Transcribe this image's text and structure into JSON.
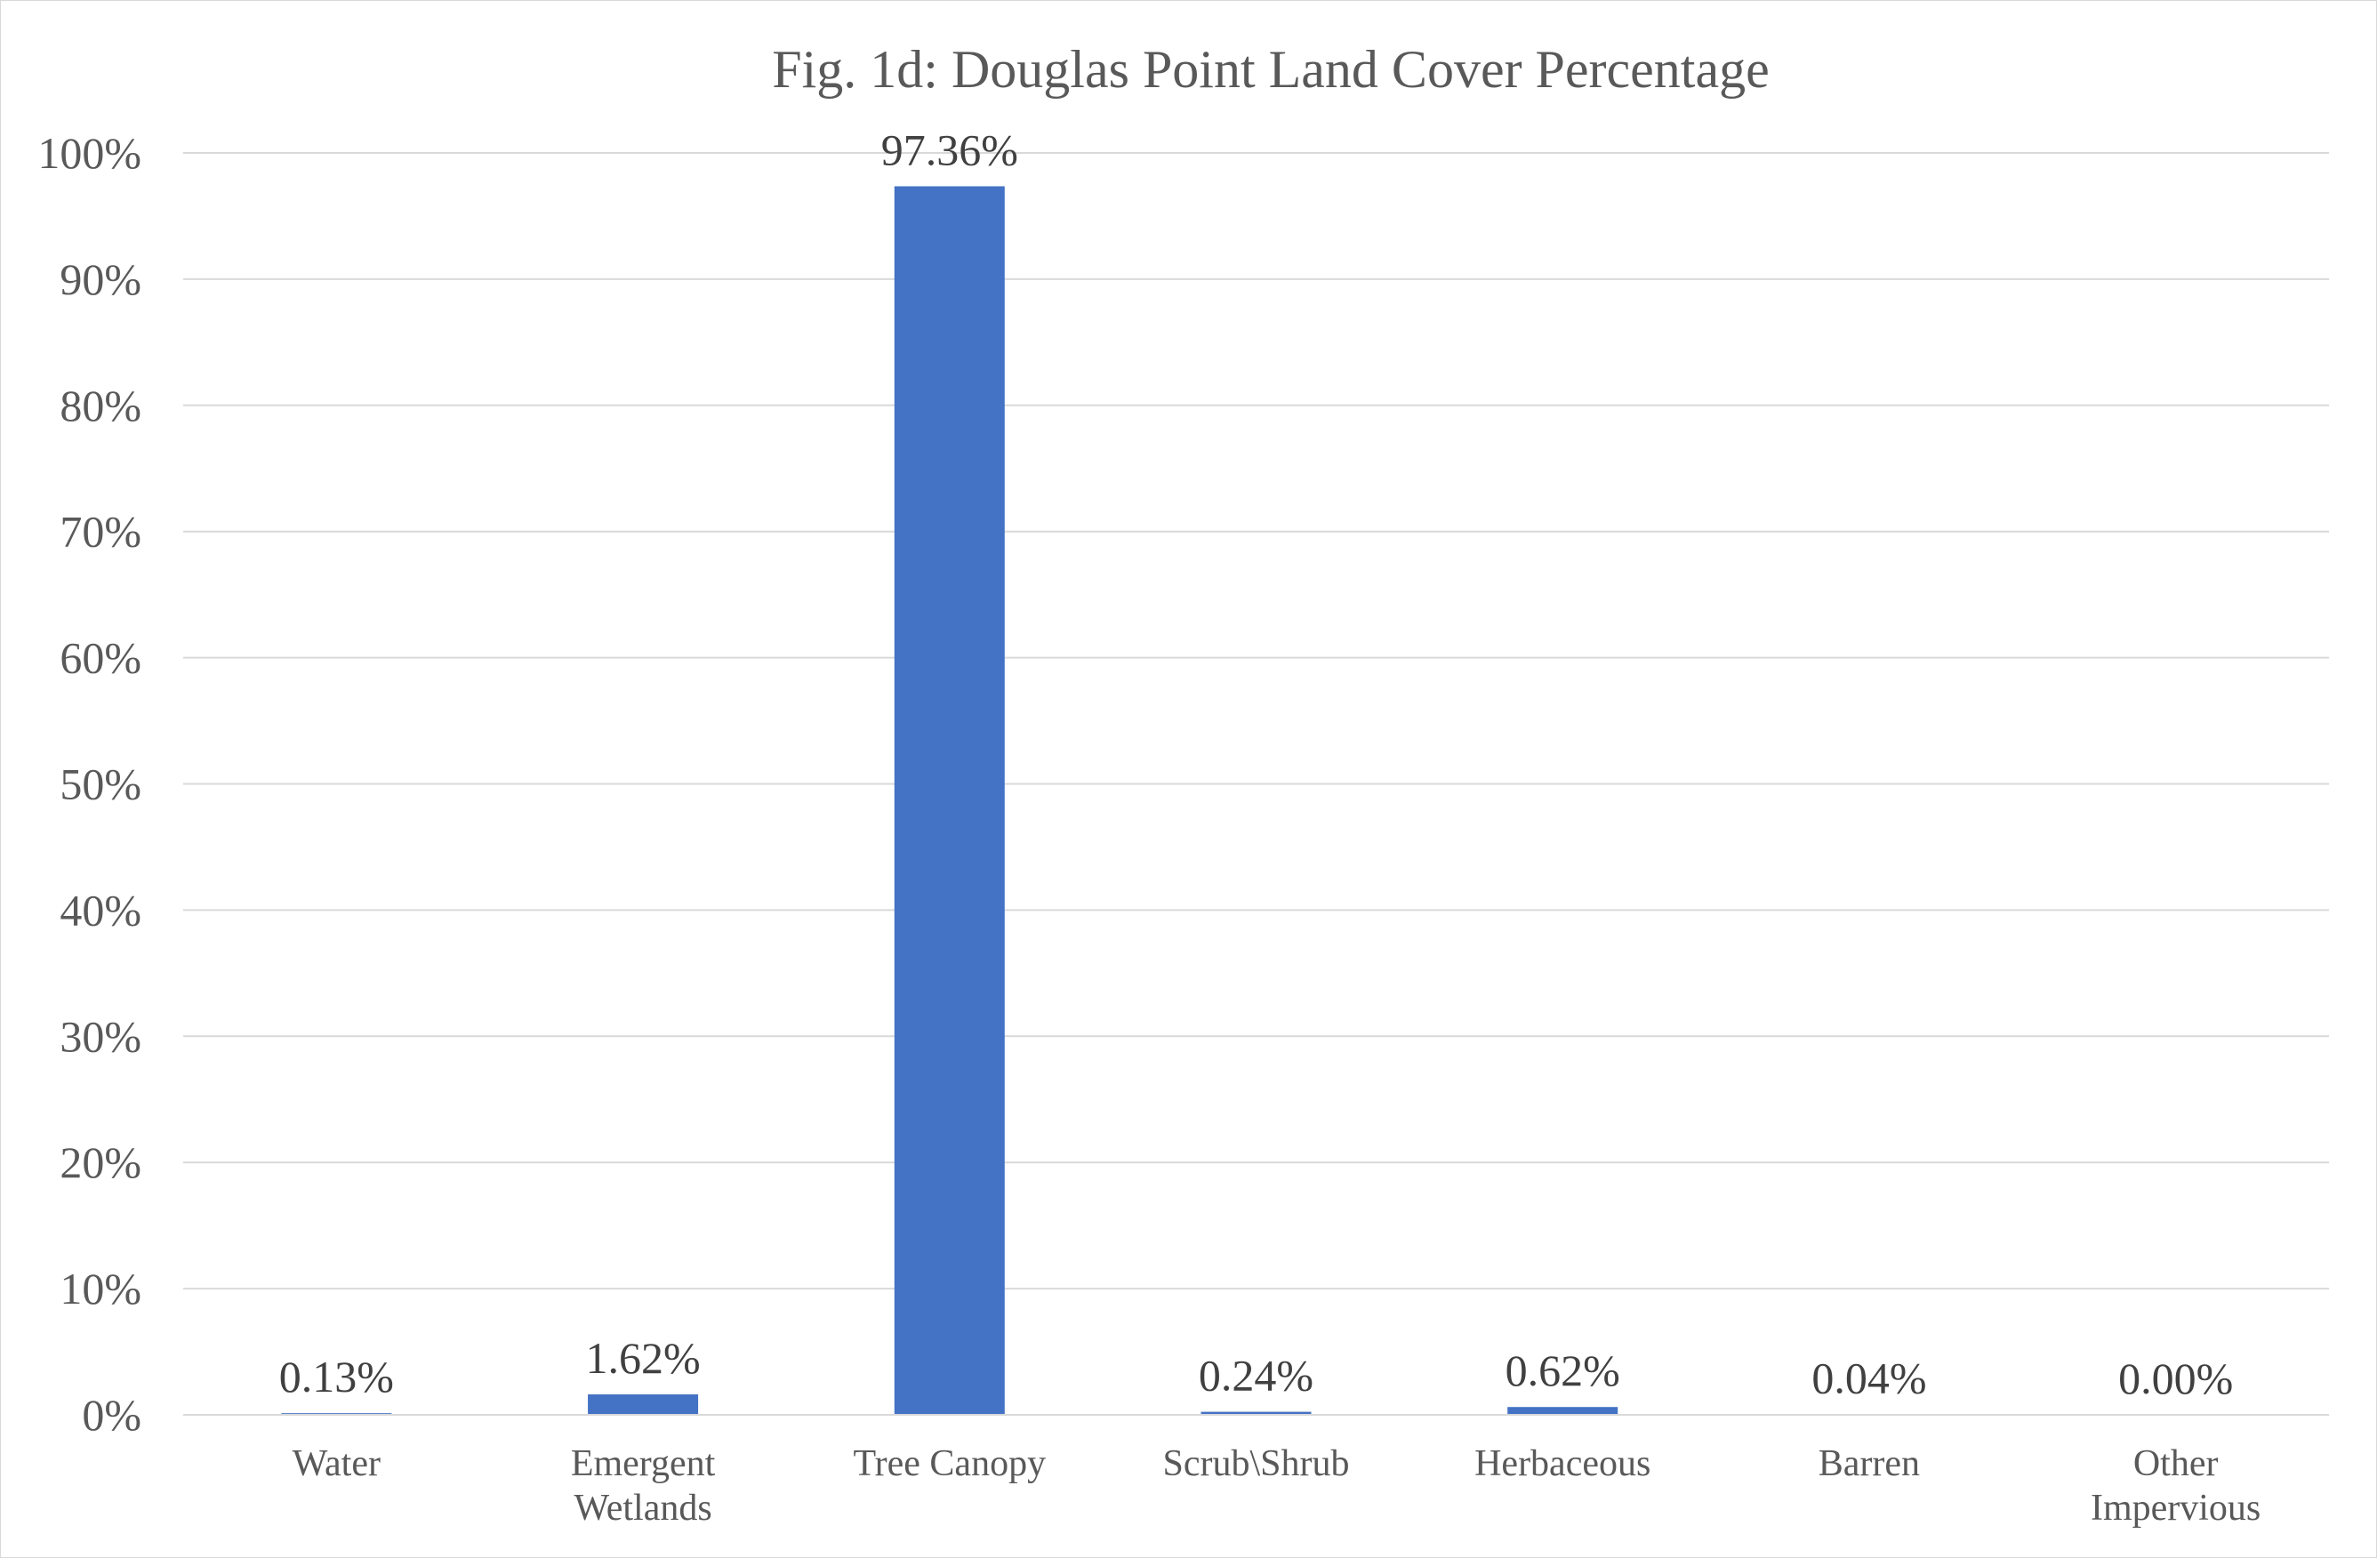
{
  "chart_data": {
    "type": "bar",
    "title": "Fig. 1d: Douglas Point Land Cover Percentage",
    "xlabel": "",
    "ylabel": "",
    "categories": [
      "Water",
      "Emergent Wetlands",
      "Tree Canopy",
      "Scrub\\Shrub",
      "Herbaceous",
      "Barren",
      "Other Impervious"
    ],
    "values": [
      0.13,
      1.62,
      97.36,
      0.24,
      0.62,
      0.04,
      0.0
    ],
    "data_labels": [
      "0.13%",
      "1.62%",
      "97.36%",
      "0.24%",
      "0.62%",
      "0.04%",
      "0.00%"
    ],
    "ylim": [
      0,
      100
    ],
    "yticks": [
      "0%",
      "10%",
      "20%",
      "30%",
      "40%",
      "50%",
      "60%",
      "70%",
      "80%",
      "90%",
      "100%"
    ],
    "grid": true,
    "legend": "none",
    "bar_color": "#4472c4"
  }
}
